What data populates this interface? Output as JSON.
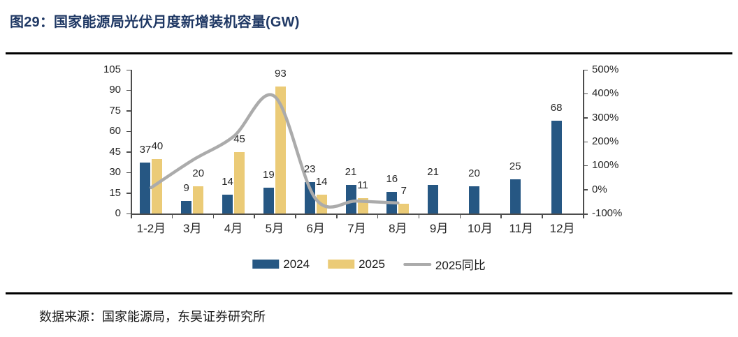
{
  "header": {
    "prefix": "图29：",
    "title": "国家能源局光伏月度新增装机容量(GW)"
  },
  "source_note": "数据来源：国家能源局，东吴证券研究所",
  "colors": {
    "title": "#1f3864",
    "bar_2024": "#265783",
    "bar_2025": "#ebcb77",
    "line_yoy": "#ababab",
    "axis": "#4d4d4d",
    "label_text": "#262626",
    "divider": "#000000"
  },
  "legend": [
    {
      "label": "2024",
      "type": "bar",
      "color_key": "bar_2024"
    },
    {
      "label": "2025",
      "type": "bar",
      "color_key": "bar_2025"
    },
    {
      "label": "2025同比",
      "type": "line",
      "color_key": "line_yoy"
    }
  ],
  "chart_data": {
    "type": "bar",
    "subtype": "grouped bars with smoothed line on secondary axis",
    "title": "国家能源局光伏月度新增装机容量(GW)",
    "categories": [
      "1-2月",
      "3月",
      "4月",
      "5月",
      "6月",
      "7月",
      "8月",
      "9月",
      "10月",
      "11月",
      "12月"
    ],
    "series": [
      {
        "name": "2024",
        "type": "bar",
        "axis": "left",
        "values": [
          37,
          9,
          14,
          19,
          23,
          21,
          16,
          21,
          20,
          25,
          68
        ]
      },
      {
        "name": "2025",
        "type": "bar",
        "axis": "left",
        "values": [
          40,
          20,
          45,
          93,
          14,
          11,
          7,
          null,
          null,
          null,
          null
        ]
      },
      {
        "name": "2025同比",
        "type": "line",
        "axis": "right",
        "unit": "%",
        "values_pct": [
          8,
          122,
          221,
          389,
          -39,
          -48,
          -56
        ]
      }
    ],
    "left_axis": {
      "ticks": [
        0,
        15,
        30,
        45,
        60,
        75,
        90,
        105
      ],
      "range": [
        0,
        105
      ]
    },
    "right_axis": {
      "tick_labels": [
        "500%",
        "400%",
        "300%",
        "200%",
        "100%",
        "0%",
        "-100%"
      ],
      "range_pct": [
        -100,
        500
      ]
    },
    "grid": false,
    "legend_position": "bottom",
    "xlabel": "",
    "ylabel": ""
  }
}
